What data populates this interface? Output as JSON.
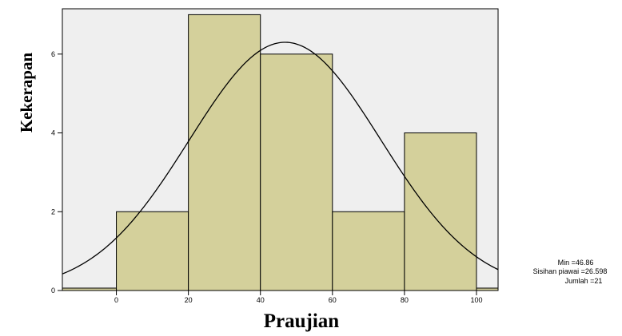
{
  "chart_data": {
    "type": "bar",
    "bins": [
      {
        "start": 0,
        "end": 20,
        "count": 2
      },
      {
        "start": 20,
        "end": 40,
        "count": 7
      },
      {
        "start": 40,
        "end": 60,
        "count": 6
      },
      {
        "start": 60,
        "end": 80,
        "count": 2
      },
      {
        "start": 80,
        "end": 100,
        "count": 4
      }
    ],
    "x_ticks": [
      "0",
      "20",
      "40",
      "60",
      "80",
      "100"
    ],
    "y_ticks": [
      "0",
      "2",
      "4",
      "6"
    ],
    "xlabel": "Praujian",
    "ylabel": "Kekerapan",
    "xlim": [
      -15,
      106
    ],
    "ylim": [
      0,
      7.15
    ],
    "normal_curve": {
      "mean": 46.86,
      "sd": 26.598,
      "n": 21,
      "bin_width": 20
    },
    "stats": {
      "mean_label": "Min =46.86",
      "sd_label": "Sisihan piawai =26.598",
      "n_label": "Jumlah =21"
    },
    "colors": {
      "plot_background": "#efefef",
      "bar_fill": "#d4d09b",
      "stroke": "#000000"
    },
    "grid": false,
    "legend": "none"
  }
}
